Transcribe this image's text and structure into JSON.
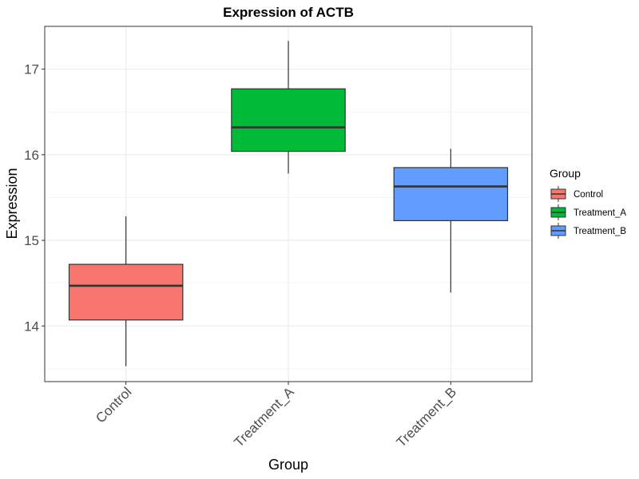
{
  "chart_data": {
    "type": "box",
    "title": "Expression of ACTB",
    "xlabel": "Group",
    "ylabel": "Expression",
    "ylim": [
      13.35,
      17.5
    ],
    "y_ticks": [
      14,
      15,
      16,
      17
    ],
    "grid": true,
    "legend": {
      "title": "Group",
      "position": "right"
    },
    "series": [
      {
        "name": "Control",
        "color": "#F8766D",
        "min": 13.53,
        "q1": 14.07,
        "median": 14.47,
        "q3": 14.72,
        "max": 15.28
      },
      {
        "name": "Treatment_A",
        "color": "#00BA38",
        "min": 15.78,
        "q1": 16.04,
        "median": 16.32,
        "q3": 16.77,
        "max": 17.33
      },
      {
        "name": "Treatment_B",
        "color": "#619CFF",
        "min": 14.39,
        "q1": 15.23,
        "median": 15.63,
        "q3": 15.85,
        "max": 16.07
      }
    ]
  }
}
